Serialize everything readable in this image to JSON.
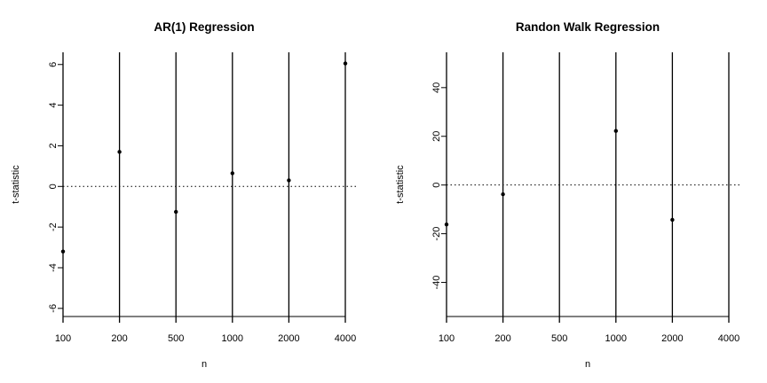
{
  "chart_data": [
    {
      "type": "scatter",
      "title": "AR(1) Regression",
      "xlabel": "n",
      "ylabel": "t-statistic",
      "categories": [
        "100",
        "200",
        "500",
        "1000",
        "2000",
        "4000"
      ],
      "values": [
        -3.2,
        1.7,
        -1.25,
        0.65,
        0.3,
        6.05
      ],
      "ylim": [
        -6.4,
        6.6
      ],
      "yticks": [
        6,
        4,
        2,
        0,
        -2,
        -4,
        -6
      ],
      "ytick_labels": [
        "6",
        "4",
        "2",
        "0",
        "-2",
        "-4",
        "-6"
      ],
      "reference_line": 0,
      "vertical_lines_at_categories": true,
      "grid": false
    },
    {
      "type": "scatter",
      "title": "Randon Walk Regression",
      "xlabel": "n",
      "ylabel": "t-statistic",
      "categories": [
        "100",
        "200",
        "500",
        "1000",
        "2000",
        "4000"
      ],
      "values": [
        -16.2,
        -3.8,
        null,
        22.2,
        -14.3,
        null
      ],
      "ylim": [
        -54,
        54.5
      ],
      "yticks": [
        40,
        20,
        0,
        -20,
        -40
      ],
      "ytick_labels": [
        "40",
        "20",
        "0",
        "-20",
        "-40"
      ],
      "reference_line": 0,
      "vertical_lines_at_categories": true,
      "grid": false
    }
  ]
}
